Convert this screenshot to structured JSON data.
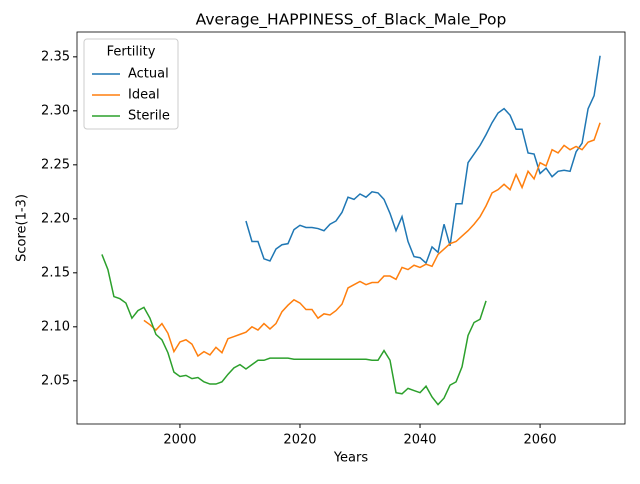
{
  "chart_data": {
    "type": "line",
    "title": "Average_HAPPINESS_of_Black_Male_Pop",
    "xlabel": "Years",
    "ylabel": "Score(1-3)",
    "legend_title": "Fertility",
    "legend": "upper left",
    "x": [
      1987,
      1988,
      1989,
      1990,
      1991,
      1992,
      1993,
      1994,
      1995,
      1996,
      1997,
      1998,
      1999,
      2000,
      2001,
      2002,
      2003,
      2004,
      2005,
      2006,
      2007,
      2008,
      2009,
      2010,
      2011,
      2012,
      2013,
      2014,
      2015,
      2016,
      2017,
      2018,
      2019,
      2020,
      2021,
      2022,
      2023,
      2024,
      2025,
      2026,
      2027,
      2028,
      2029,
      2030,
      2031,
      2032,
      2033,
      2034,
      2035,
      2036,
      2037,
      2038,
      2039,
      2040,
      2041,
      2042,
      2043,
      2044,
      2045,
      2046,
      2047,
      2048,
      2049,
      2050,
      2051,
      2052,
      2053,
      2054,
      2055,
      2056,
      2057,
      2058,
      2059,
      2060,
      2061,
      2062,
      2063,
      2064,
      2065,
      2066,
      2067,
      2068,
      2069,
      2070
    ],
    "series": [
      {
        "name": "Actual",
        "color": "#1f77b4",
        "values": [
          null,
          null,
          null,
          null,
          null,
          null,
          null,
          null,
          null,
          null,
          null,
          null,
          null,
          null,
          null,
          null,
          null,
          null,
          null,
          null,
          null,
          null,
          null,
          null,
          2.198,
          2.179,
          2.179,
          2.163,
          2.161,
          2.172,
          2.176,
          2.177,
          2.19,
          2.194,
          2.192,
          2.192,
          2.191,
          2.189,
          2.195,
          2.198,
          2.206,
          2.22,
          2.218,
          2.223,
          2.22,
          2.225,
          2.224,
          2.218,
          2.205,
          2.189,
          2.202,
          2.179,
          2.165,
          2.164,
          2.159,
          2.174,
          2.169,
          2.195,
          2.175,
          2.214,
          2.214,
          2.252,
          2.26,
          2.268,
          2.278,
          2.289,
          2.298,
          2.302,
          2.296,
          2.283,
          2.283,
          2.261,
          2.26,
          2.242,
          2.247,
          2.239,
          2.244,
          2.245,
          2.244,
          2.262,
          2.27,
          2.302,
          2.314,
          2.351
        ]
      },
      {
        "name": "Ideal",
        "color": "#ff7f0e",
        "values": [
          null,
          null,
          null,
          null,
          null,
          null,
          null,
          2.106,
          2.102,
          2.097,
          2.103,
          2.094,
          2.077,
          2.086,
          2.088,
          2.084,
          2.073,
          2.077,
          2.074,
          2.081,
          2.076,
          2.089,
          2.091,
          2.093,
          2.095,
          2.1,
          2.097,
          2.103,
          2.098,
          2.103,
          2.114,
          2.12,
          2.125,
          2.122,
          2.116,
          2.116,
          2.108,
          2.112,
          2.111,
          2.115,
          2.121,
          2.136,
          2.139,
          2.142,
          2.139,
          2.141,
          2.141,
          2.147,
          2.147,
          2.144,
          2.155,
          2.153,
          2.157,
          2.155,
          2.158,
          2.156,
          2.167,
          2.172,
          2.177,
          2.179,
          2.184,
          2.189,
          2.195,
          2.202,
          2.212,
          2.224,
          2.227,
          2.232,
          2.227,
          2.241,
          2.229,
          2.244,
          2.237,
          2.252,
          2.249,
          2.264,
          2.261,
          2.268,
          2.264,
          2.267,
          2.264,
          2.271,
          2.273,
          2.289
        ]
      },
      {
        "name": "Sterile",
        "color": "#2ca02c",
        "values": [
          2.167,
          2.153,
          2.128,
          2.126,
          2.122,
          2.108,
          2.115,
          2.118,
          2.108,
          2.093,
          2.088,
          2.076,
          2.058,
          2.054,
          2.055,
          2.052,
          2.053,
          2.049,
          2.047,
          2.047,
          2.049,
          2.056,
          2.062,
          2.065,
          2.061,
          2.065,
          2.069,
          2.069,
          2.071,
          2.071,
          2.071,
          2.071,
          2.07,
          2.07,
          2.07,
          2.07,
          2.07,
          2.07,
          2.07,
          2.07,
          2.07,
          2.07,
          2.07,
          2.07,
          2.07,
          2.069,
          2.069,
          2.078,
          2.069,
          2.039,
          2.038,
          2.043,
          2.041,
          2.039,
          2.045,
          2.035,
          2.028,
          2.034,
          2.046,
          2.049,
          2.063,
          2.092,
          2.104,
          2.107,
          2.124,
          null,
          null,
          null,
          null,
          null,
          null,
          null,
          null,
          null,
          null,
          null,
          null,
          null,
          null,
          null,
          null,
          null,
          null,
          null
        ]
      }
    ],
    "xlim": [
      1982.85,
      2074.15
    ],
    "ylim": [
      2.01,
      2.373
    ],
    "xticks": [
      2000,
      2020,
      2040,
      2060
    ],
    "yticks": [
      2.05,
      {
        "value": 2.1,
        "label": "2.10"
      },
      2.15,
      {
        "value": 2.2,
        "label": "2.20"
      },
      2.25,
      {
        "value": 2.3,
        "label": "2.30"
      },
      2.35
    ]
  }
}
